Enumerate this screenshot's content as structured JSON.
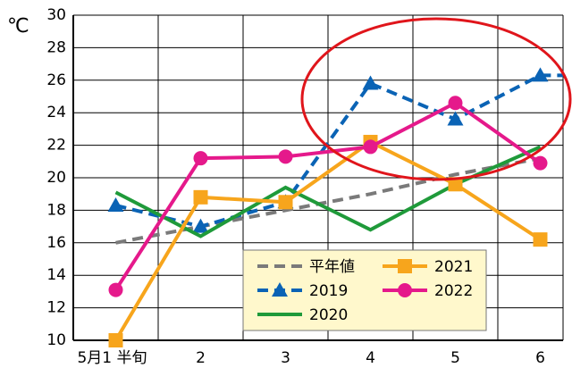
{
  "chart_data": {
    "type": "line",
    "y_unit": "℃",
    "categories": [
      "5月1 半旬",
      "2",
      "3",
      "4",
      "5",
      "6"
    ],
    "ylim": [
      10,
      30
    ],
    "yticks": [
      10,
      12,
      14,
      16,
      18,
      20,
      22,
      24,
      26,
      28,
      30
    ],
    "grid": true,
    "series": [
      {
        "name": "平年値",
        "color": "#7a7a7a",
        "dash": true,
        "marker": "none",
        "values": [
          16.0,
          17.0,
          18.0,
          19.0,
          20.2,
          21.2
        ]
      },
      {
        "name": "2019",
        "color": "#0a63b5",
        "dash": true,
        "marker": "triangle",
        "values": [
          18.3,
          17.0,
          18.5,
          25.8,
          23.6,
          26.3
        ]
      },
      {
        "name": "2020",
        "color": "#1f9a3a",
        "dash": false,
        "marker": "none",
        "values": [
          19.1,
          16.4,
          19.4,
          16.8,
          19.6,
          21.9
        ]
      },
      {
        "name": "2021",
        "color": "#f7a51c",
        "dash": false,
        "marker": "square",
        "values": [
          10.0,
          18.8,
          18.5,
          22.2,
          19.6,
          16.2
        ]
      },
      {
        "name": "2022",
        "color": "#e5198b",
        "dash": false,
        "marker": "circle",
        "values": [
          13.1,
          21.2,
          21.3,
          21.9,
          24.6,
          20.9
        ]
      }
    ]
  }
}
